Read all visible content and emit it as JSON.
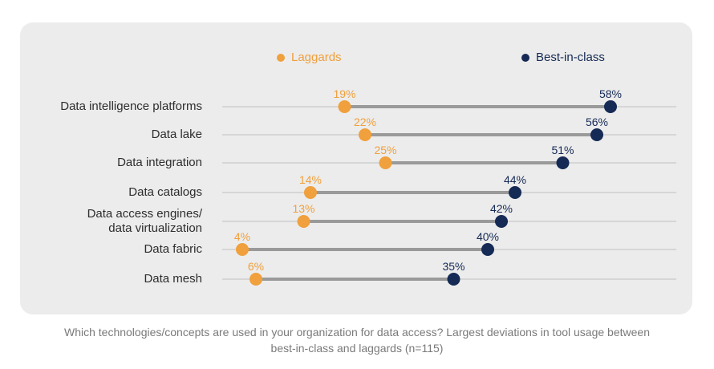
{
  "chart_data": {
    "type": "dumbbell",
    "categories": [
      [
        "Data intelligence platforms"
      ],
      [
        "Data lake"
      ],
      [
        "Data integration"
      ],
      [
        "Data catalogs"
      ],
      [
        "Data access engines/",
        "data virtualization"
      ],
      [
        "Data fabric"
      ],
      [
        "Data mesh"
      ]
    ],
    "series": [
      {
        "name": "Laggards",
        "color": "#f0a03c",
        "values": [
          19,
          22,
          25,
          14,
          13,
          4,
          6
        ],
        "labels": [
          "19%",
          "22%",
          "25%",
          "14%",
          "13%",
          "4%",
          "6%"
        ]
      },
      {
        "name": "Best-in-class",
        "color": "#152a55",
        "values": [
          58,
          56,
          51,
          44,
          42,
          40,
          35
        ],
        "labels": [
          "58%",
          "56%",
          "51%",
          "44%",
          "42%",
          "40%",
          "35%"
        ]
      }
    ],
    "xlim": [
      0,
      60
    ],
    "unit": "%",
    "legend_position": "top"
  },
  "caption": {
    "line1": "Which technologies/concepts are used in your organization for data access? Largest deviations in tool usage between",
    "line2": "best-in-class  and laggards (n=115)"
  },
  "colors": {
    "panel": "#ececec",
    "connector": "#9a9a9a",
    "gridline": "#d6d6d6"
  }
}
